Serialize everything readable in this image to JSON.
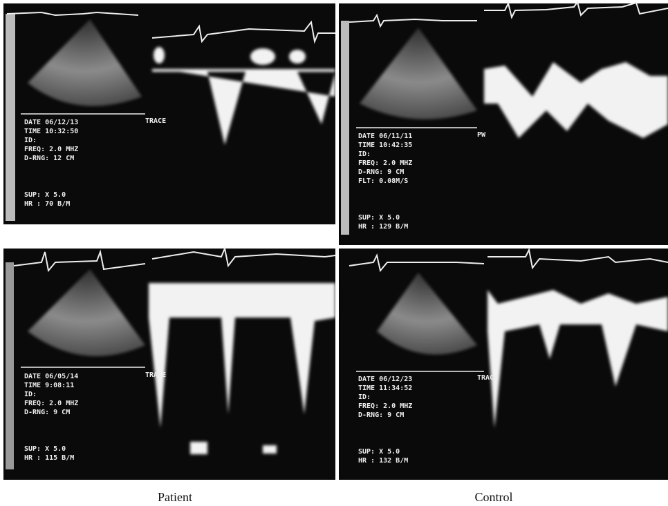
{
  "panels": [
    {
      "lines": [
        "DATE 06/12/13",
        "TIME 10:32:50",
        "ID:",
        "FREQ: 2.0 MHZ",
        "D-RNG: 12 CM",
        "SUP: X 5.0",
        "HR : 70 B/M"
      ],
      "label": "TRACE"
    },
    {
      "lines": [
        "DATE 06/11/11",
        "TIME 10:42:35",
        "ID:",
        "FREQ: 2.0 MHZ",
        "D-RNG: 9 CM",
        "FLT: 0.08M/S",
        "SUP: X 5.0",
        "HR : 129 B/M"
      ],
      "label": "PW"
    },
    {
      "lines": [
        "DATE 06/05/14",
        "TIME 9:08:11",
        "ID:",
        "FREQ: 2.0 MHZ",
        "D-RNG: 9 CM",
        "SUP: X 5.0",
        "HR : 115 B/M"
      ],
      "label": "TRACE"
    },
    {
      "lines": [
        "DATE 06/12/23",
        "TIME 11:34:52",
        "ID:",
        "FREQ: 2.0 MHZ",
        "D-RNG: 9 CM",
        "SUP: X 5.0",
        "HR : 132 B/M"
      ],
      "label": "TRACE"
    }
  ],
  "captions": [
    "Patient",
    "Control"
  ]
}
